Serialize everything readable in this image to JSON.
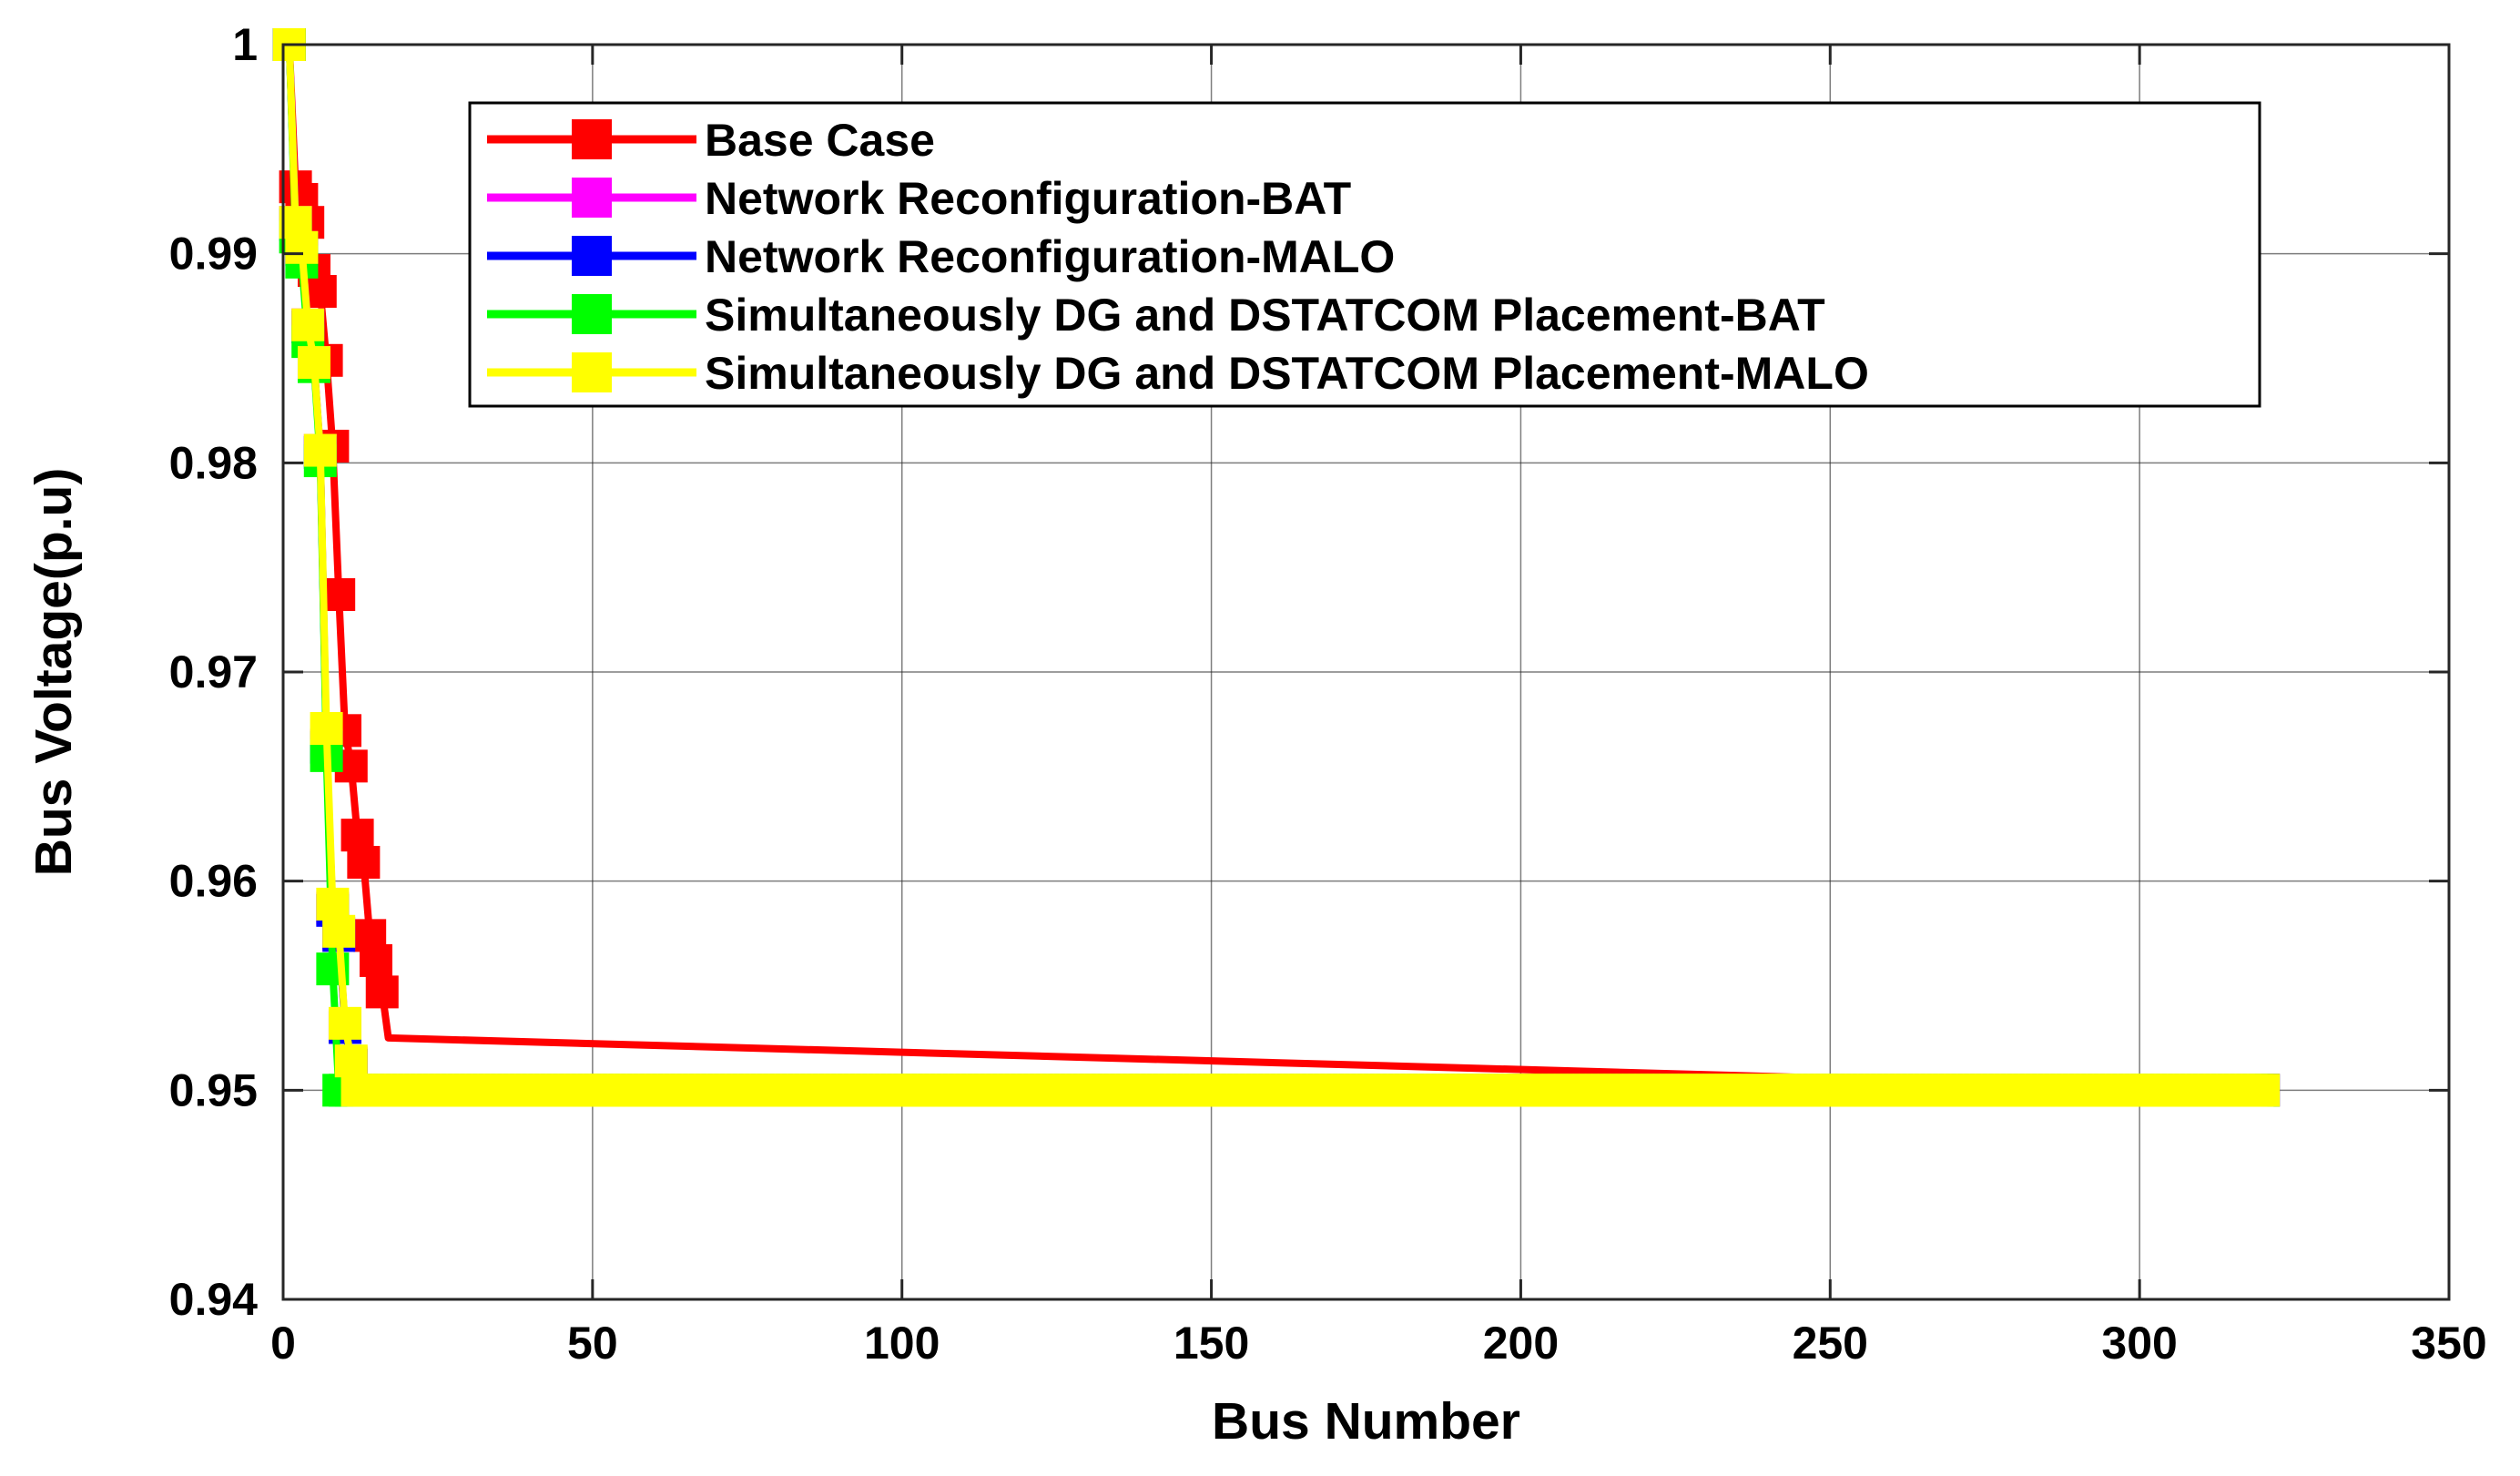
{
  "chart_data": {
    "type": "line",
    "title": "",
    "xlabel": "Bus Number",
    "ylabel": "Bus Voltage(p.u)",
    "xlim": [
      0,
      350
    ],
    "ylim": [
      0.94,
      1
    ],
    "xticks": [
      0,
      50,
      100,
      150,
      200,
      250,
      300,
      350
    ],
    "yticks": [
      0.94,
      0.95,
      0.96,
      0.97,
      0.98,
      0.99,
      1
    ],
    "xtick_labels": [
      "0",
      "50",
      "100",
      "150",
      "200",
      "250",
      "300",
      "350"
    ],
    "ytick_labels": [
      "0.94",
      "0.95",
      "0.96",
      "0.97",
      "0.98",
      "0.99",
      "1"
    ],
    "grid": "major",
    "legend_position": "top-center",
    "marker": "square",
    "series": [
      {
        "name": "Base Case",
        "color": "#ff0000",
        "x": [
          1,
          2,
          3,
          4,
          5,
          6,
          7,
          8,
          9,
          10,
          11,
          12,
          13,
          14,
          15,
          16,
          17,
          320
        ],
        "y": [
          1.0,
          0.9932,
          0.9926,
          0.9915,
          0.9892,
          0.9882,
          0.9849,
          0.9808,
          0.9737,
          0.9672,
          0.9655,
          0.9622,
          0.9609,
          0.9574,
          0.9562,
          0.9547,
          0.9525,
          0.95
        ]
      },
      {
        "name": "Network Reconfiguration-BAT",
        "color": "#ff00ff",
        "x": [
          1,
          2,
          3,
          4,
          5,
          6,
          7,
          8,
          9,
          10,
          11,
          12,
          320
        ],
        "y": [
          1.0,
          0.9915,
          0.9903,
          0.9866,
          0.9848,
          0.9806,
          0.9665,
          0.9587,
          0.9575,
          0.9531,
          0.9513,
          0.95,
          0.95
        ]
      },
      {
        "name": "Network Reconfiguration-MALO",
        "color": "#0000ff",
        "x": [
          1,
          2,
          3,
          4,
          5,
          6,
          7,
          8,
          9,
          10,
          11,
          12,
          320
        ],
        "y": [
          1.0,
          0.9914,
          0.9902,
          0.9865,
          0.9847,
          0.9805,
          0.9664,
          0.9586,
          0.9574,
          0.953,
          0.9512,
          0.95,
          0.95
        ]
      },
      {
        "name": "Simultaneously DG and DSTATCOM Placement-BAT",
        "color": "#00ff00",
        "x": [
          1,
          2,
          3,
          4,
          5,
          6,
          7,
          8,
          9,
          320
        ],
        "y": [
          1.0,
          0.9908,
          0.9896,
          0.9858,
          0.9846,
          0.9801,
          0.966,
          0.9558,
          0.95,
          0.95
        ]
      },
      {
        "name": "Simultaneously DG and DSTATCOM Placement-MALO",
        "color": "#ffff00",
        "x": [
          1,
          2,
          3,
          4,
          5,
          6,
          7,
          8,
          9,
          10,
          11,
          12,
          320
        ],
        "y": [
          1.0,
          0.9915,
          0.9903,
          0.9866,
          0.9848,
          0.9806,
          0.9673,
          0.9589,
          0.9576,
          0.9532,
          0.9514,
          0.95,
          0.95
        ]
      }
    ]
  }
}
